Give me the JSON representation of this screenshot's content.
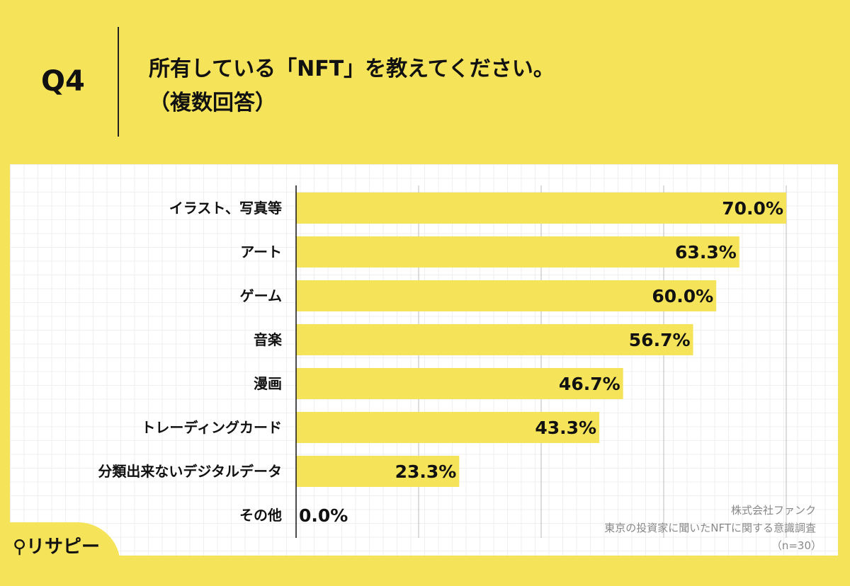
{
  "header": {
    "q_label": "Q4",
    "title_line1": "所有している「NFT」を教えてください。",
    "title_line2": "（複数回答）"
  },
  "chart_data": {
    "type": "bar",
    "orientation": "horizontal",
    "categories": [
      "イラスト、写真等",
      "アート",
      "ゲーム",
      "音楽",
      "漫画",
      "トレーディングカード",
      "分類出来ないデジタルデータ",
      "その他"
    ],
    "values": [
      70.0,
      63.3,
      60.0,
      56.7,
      46.7,
      43.3,
      23.3,
      0.0
    ],
    "data_labels": [
      "70.0%",
      "63.3%",
      "60.0%",
      "56.7%",
      "46.7%",
      "43.3%",
      "23.3%",
      "0.0%"
    ],
    "xlim": [
      0,
      70
    ],
    "grid": true,
    "bar_color": "#f5e35a"
  },
  "footer": {
    "company": "株式会社ファンク",
    "survey": "東京の投資家に聞いたNFTに関する意識調査",
    "sample": "（n=30）",
    "logo": "リサピー"
  }
}
